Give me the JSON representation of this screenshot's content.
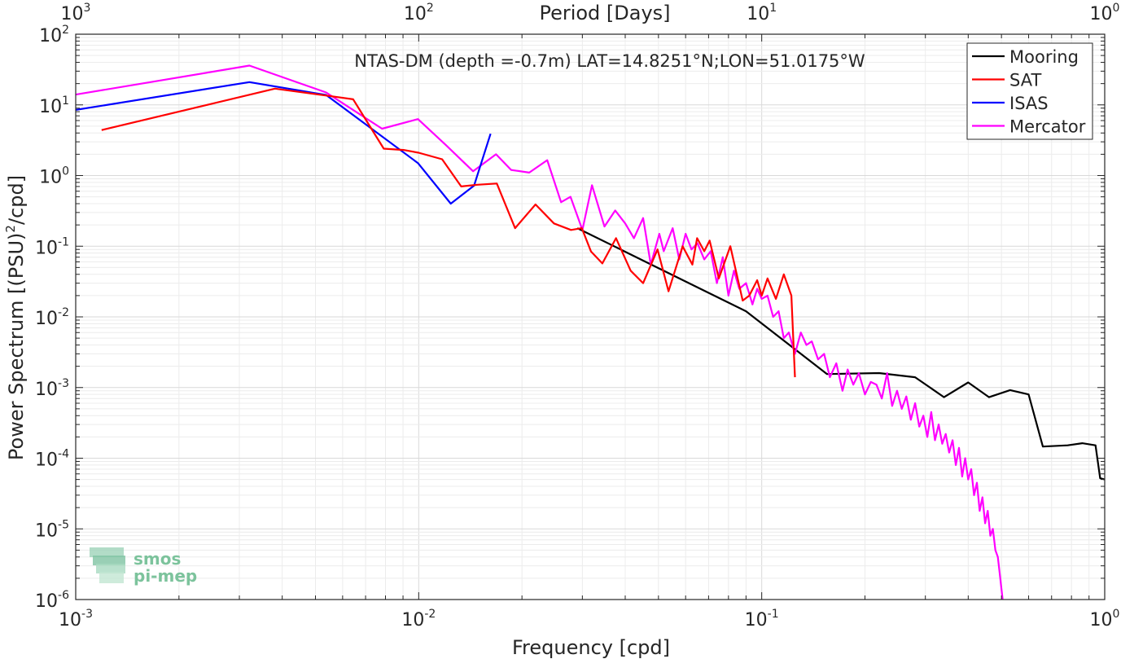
{
  "chart_data": {
    "type": "line",
    "title": "NTAS-DM (depth =-0.7m) LAT=14.8251°N;LON=51.0175°W",
    "xlabel": "Frequency [cpd]",
    "ylabel": "Power Spectrum [(PSU)",
    "ylabel_sup": "2",
    "ylabel_tail": "/cpd]",
    "top_xlabel": "Period [Days]",
    "x_scale": "log",
    "y_scale": "log",
    "xlim": [
      0.001,
      1
    ],
    "ylim": [
      1e-06,
      100
    ],
    "grid": true,
    "legend_position": "top-right",
    "x_ticks": [
      {
        "value": 0.001,
        "base": "10",
        "exp": "-3"
      },
      {
        "value": 0.01,
        "base": "10",
        "exp": "-2"
      },
      {
        "value": 0.1,
        "base": "10",
        "exp": "-1"
      },
      {
        "value": 1,
        "base": "10",
        "exp": "0"
      }
    ],
    "top_ticks": [
      {
        "value": 0.001,
        "base": "10",
        "exp": "3"
      },
      {
        "value": 0.01,
        "base": "10",
        "exp": "2"
      },
      {
        "value": 0.1,
        "base": "10",
        "exp": "1"
      },
      {
        "value": 1,
        "base": "10",
        "exp": "0"
      }
    ],
    "y_ticks": [
      {
        "value": 100,
        "base": "10",
        "exp": "2"
      },
      {
        "value": 10,
        "base": "10",
        "exp": "1"
      },
      {
        "value": 1,
        "base": "10",
        "exp": "0"
      },
      {
        "value": 0.1,
        "base": "10",
        "exp": "-1"
      },
      {
        "value": 0.01,
        "base": "10",
        "exp": "-2"
      },
      {
        "value": 0.001,
        "base": "10",
        "exp": "-3"
      },
      {
        "value": 0.0001,
        "base": "10",
        "exp": "-4"
      },
      {
        "value": 1e-05,
        "base": "10",
        "exp": "-5"
      },
      {
        "value": 1e-06,
        "base": "10",
        "exp": "-6"
      }
    ],
    "series": [
      {
        "name": "Mooring",
        "color": "#000000",
        "x": [
          0.029,
          0.09,
          0.155,
          0.22,
          0.28,
          0.34,
          0.4,
          0.46,
          0.53,
          0.6,
          0.66,
          0.78,
          0.86,
          0.94,
          0.97,
          1.0
        ],
        "y": [
          0.18,
          0.012,
          0.00155,
          0.0016,
          0.0014,
          0.00073,
          0.00118,
          0.00073,
          0.00092,
          0.0008,
          0.000146,
          0.000152,
          0.000163,
          0.000152,
          5.2e-05,
          5e-05
        ]
      },
      {
        "name": "SAT",
        "color": "#ff0000",
        "x": [
          0.00119,
          0.00381,
          0.0056,
          0.00644,
          0.00791,
          0.00903,
          0.01,
          0.0117,
          0.0133,
          0.0148,
          0.0169,
          0.0191,
          0.0219,
          0.0248,
          0.0278,
          0.0299,
          0.0318,
          0.0343,
          0.0376,
          0.0415,
          0.0451,
          0.0497,
          0.0535,
          0.0588,
          0.0628,
          0.0648,
          0.068,
          0.0705,
          0.075,
          0.081,
          0.088,
          0.092,
          0.097,
          0.1,
          0.104,
          0.11,
          0.116,
          0.122,
          0.125
        ],
        "y": [
          4.4,
          17,
          13.2,
          12,
          2.4,
          2.3,
          2.1,
          1.7,
          0.7,
          0.74,
          0.77,
          0.18,
          0.39,
          0.21,
          0.17,
          0.18,
          0.084,
          0.057,
          0.13,
          0.045,
          0.03,
          0.09,
          0.023,
          0.1,
          0.055,
          0.13,
          0.085,
          0.12,
          0.035,
          0.1,
          0.017,
          0.02,
          0.033,
          0.02,
          0.035,
          0.018,
          0.04,
          0.02,
          0.0014
        ]
      },
      {
        "name": "ISAS",
        "color": "#0000ff",
        "x": [
          0.001,
          0.00321,
          0.00537,
          0.00995,
          0.0124,
          0.0145,
          0.0162
        ],
        "y": [
          8.5,
          21,
          13.8,
          1.5,
          0.4,
          0.72,
          3.9
        ]
      },
      {
        "name": "Mercator",
        "color": "#ff00ff",
        "x": [
          0.001,
          0.00321,
          0.00537,
          0.00782,
          0.00995,
          0.012,
          0.0144,
          0.0168,
          0.0186,
          0.021,
          0.0237,
          0.026,
          0.0277,
          0.03,
          0.032,
          0.0348,
          0.0374,
          0.04,
          0.0424,
          0.0451,
          0.0475,
          0.0503,
          0.0518,
          0.055,
          0.0575,
          0.06,
          0.0624,
          0.065,
          0.068,
          0.071,
          0.074,
          0.077,
          0.08,
          0.083,
          0.086,
          0.09,
          0.094,
          0.097,
          0.1,
          0.104,
          0.108,
          0.112,
          0.116,
          0.12,
          0.125,
          0.13,
          0.135,
          0.14,
          0.146,
          0.152,
          0.158,
          0.165,
          0.172,
          0.178,
          0.185,
          0.192,
          0.2,
          0.208,
          0.216,
          0.224,
          0.232,
          0.24,
          0.248,
          0.256,
          0.264,
          0.272,
          0.28,
          0.288,
          0.296,
          0.304,
          0.312,
          0.32,
          0.328,
          0.336,
          0.344,
          0.352,
          0.36,
          0.368,
          0.376,
          0.384,
          0.392,
          0.4,
          0.408,
          0.416,
          0.424,
          0.432,
          0.44,
          0.448,
          0.456,
          0.464,
          0.472,
          0.48,
          0.488,
          0.496,
          0.504
        ],
        "y": [
          14,
          36,
          15,
          4.6,
          6.3,
          2.7,
          1.15,
          2.0,
          1.2,
          1.1,
          1.65,
          0.42,
          0.5,
          0.17,
          0.73,
          0.19,
          0.32,
          0.21,
          0.13,
          0.25,
          0.055,
          0.15,
          0.085,
          0.18,
          0.065,
          0.15,
          0.09,
          0.11,
          0.065,
          0.085,
          0.03,
          0.07,
          0.02,
          0.045,
          0.025,
          0.03,
          0.015,
          0.025,
          0.018,
          0.02,
          0.01,
          0.012,
          0.005,
          0.006,
          0.003,
          0.006,
          0.004,
          0.0045,
          0.0025,
          0.003,
          0.0014,
          0.0022,
          0.0009,
          0.0018,
          0.0011,
          0.0016,
          0.0008,
          0.0012,
          0.0011,
          0.0007,
          0.0016,
          0.00055,
          0.0009,
          0.0005,
          0.00075,
          0.00035,
          0.0006,
          0.00028,
          0.0004,
          0.0002,
          0.00045,
          0.00018,
          0.0003,
          0.00016,
          0.00022,
          0.00012,
          0.00018,
          8e-05,
          0.00014,
          5.5e-05,
          0.0001,
          5e-05,
          7e-05,
          3e-05,
          4.5e-05,
          1.8e-05,
          2.8e-05,
          1.2e-05,
          1.8e-05,
          8e-06,
          1e-05,
          5e-06,
          4e-06,
          2e-06,
          1e-06
        ]
      }
    ]
  },
  "watermark": {
    "line1": "smos",
    "line2": "pi-mep"
  }
}
